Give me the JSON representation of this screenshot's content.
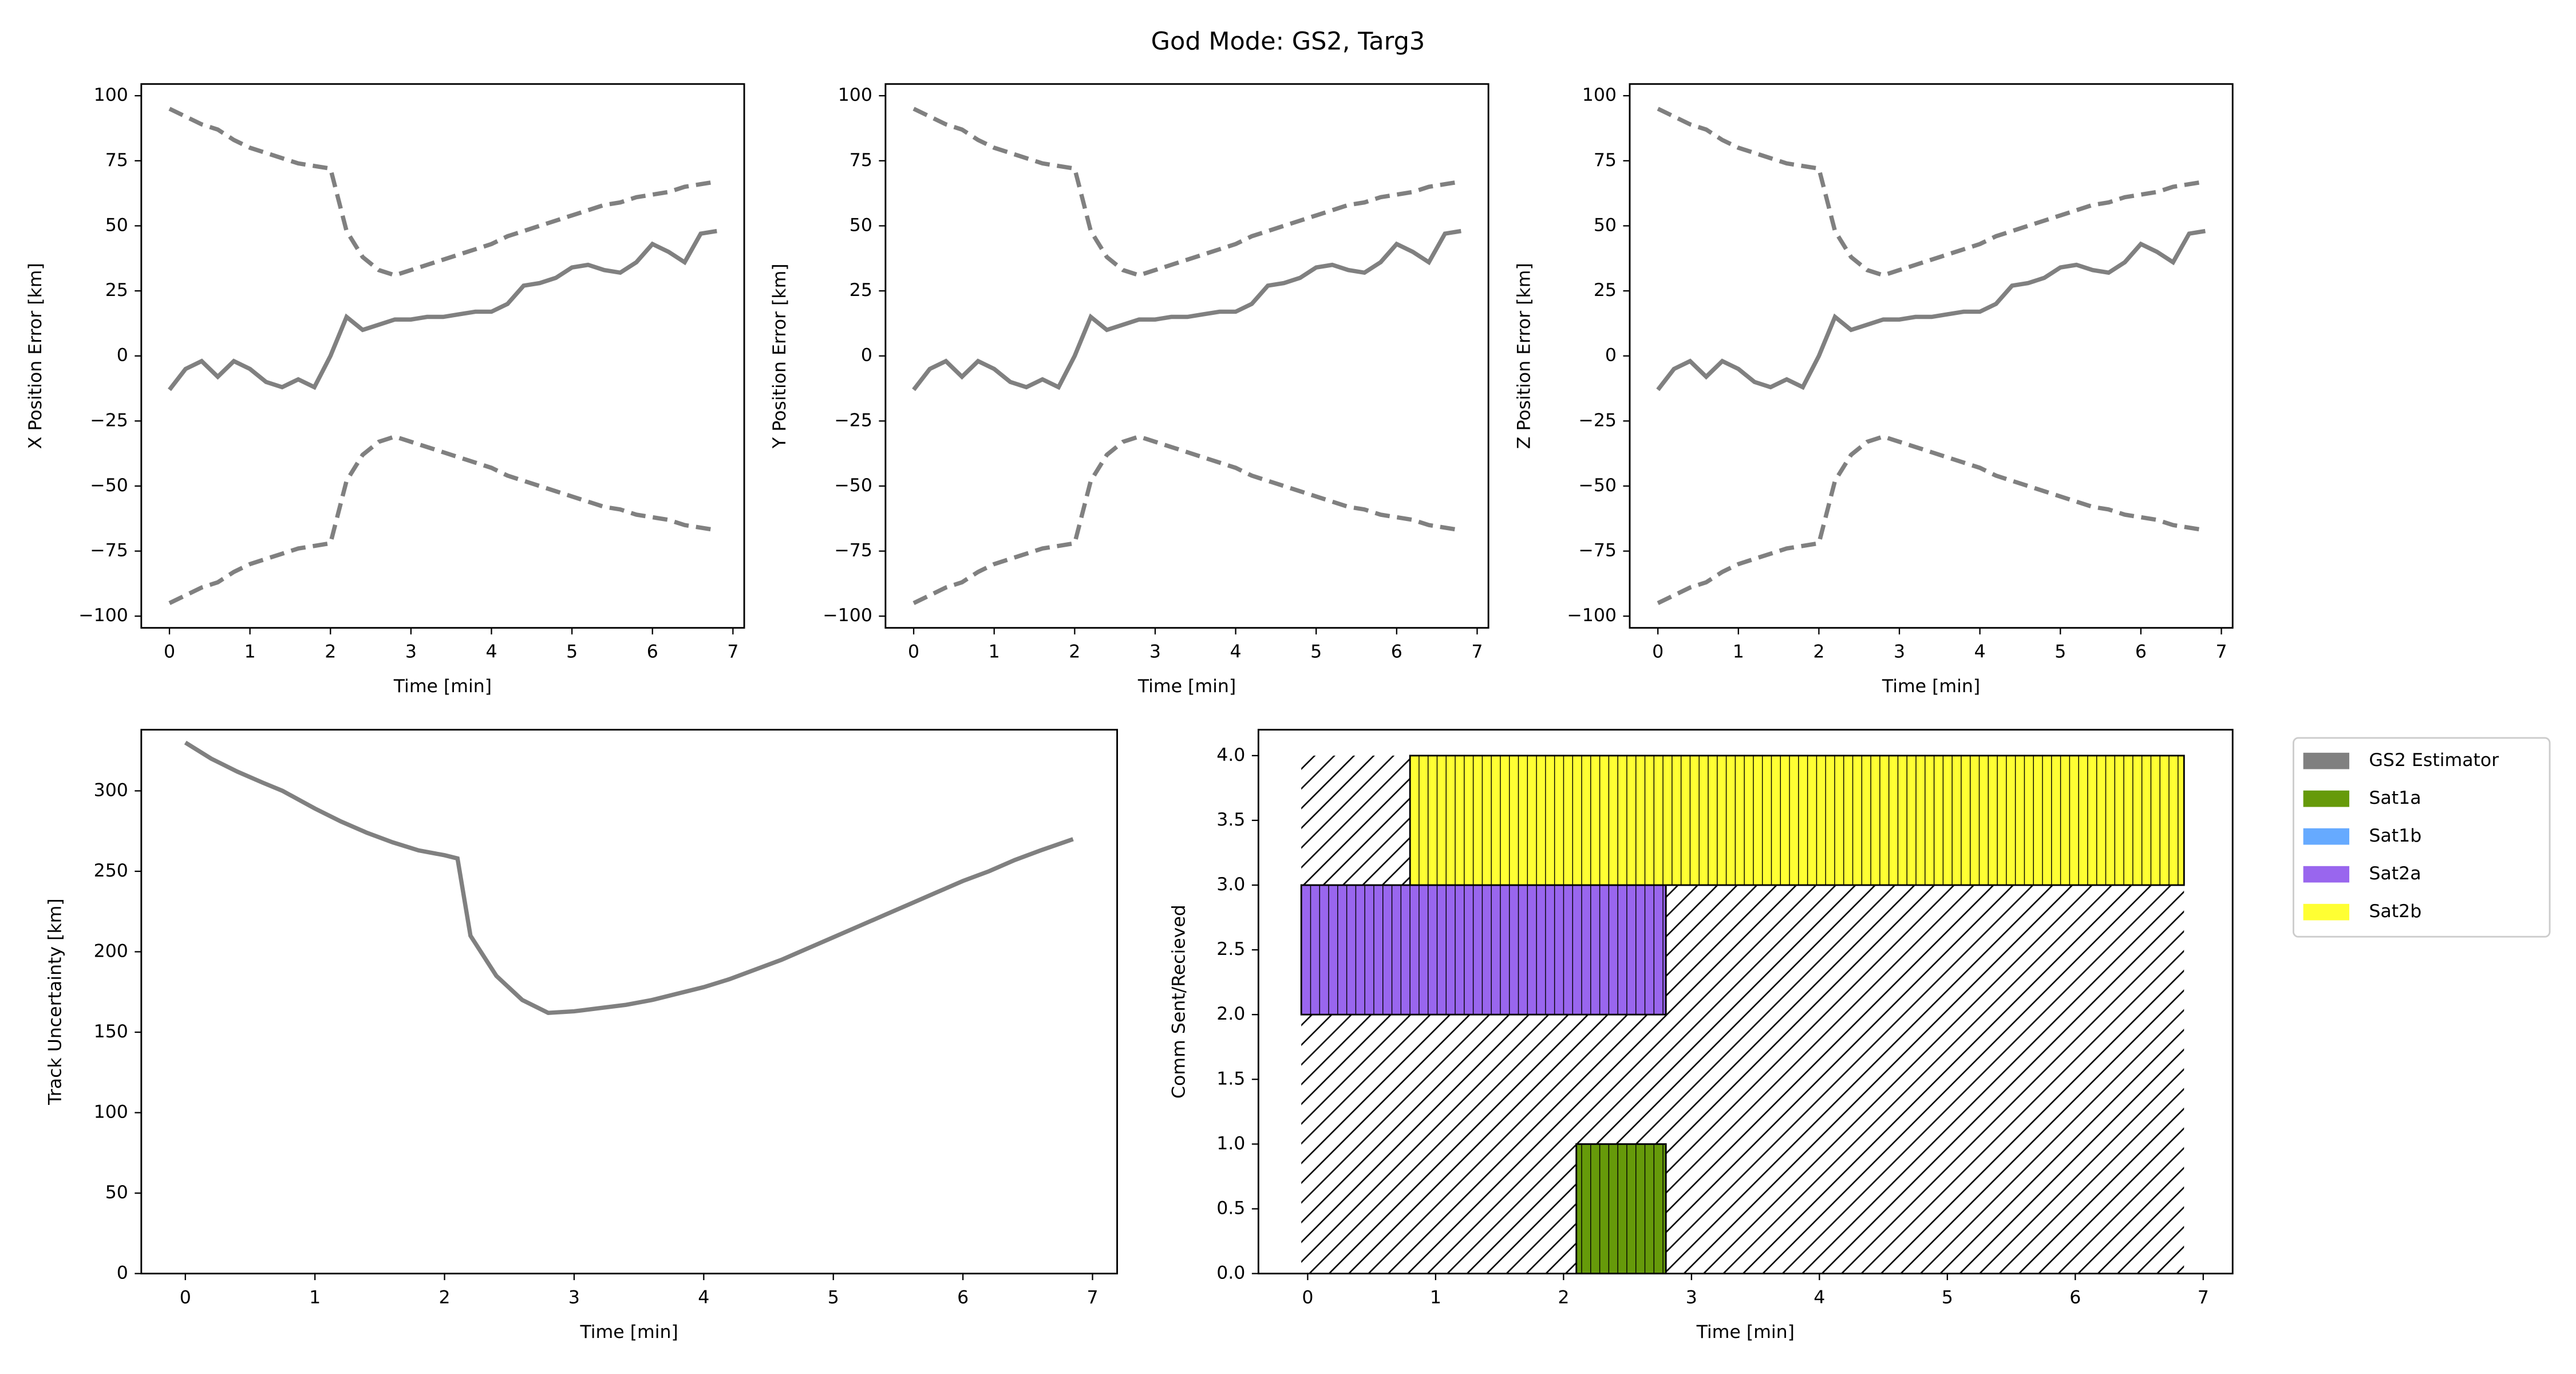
{
  "title": "God Mode: GS2, Targ3",
  "chart_data": [
    {
      "type": "line",
      "xlabel": "Time [min]",
      "ylabel": "X Position Error [km]",
      "x": [
        0,
        0.2,
        0.4,
        0.6,
        0.8,
        1.0,
        1.2,
        1.4,
        1.6,
        1.8,
        2.0,
        2.2,
        2.4,
        2.6,
        2.8,
        3.0,
        3.2,
        3.4,
        3.6,
        3.8,
        4.0,
        4.2,
        4.4,
        4.6,
        4.8,
        5.0,
        5.2,
        5.4,
        5.6,
        5.8,
        6.0,
        6.2,
        6.4,
        6.6,
        6.8
      ],
      "series": [
        {
          "color": "#808080",
          "linestyle": "solid",
          "values": [
            -13,
            -5,
            -2,
            -8,
            -2,
            -5,
            -10,
            -12,
            -9,
            -12,
            0,
            15,
            10,
            12,
            14,
            14,
            15,
            15,
            16,
            17,
            17,
            20,
            27,
            28,
            30,
            34,
            35,
            33,
            32,
            36,
            43,
            40,
            36,
            47,
            48
          ]
        },
        {
          "color": "#808080",
          "linestyle": "dashed",
          "values": [
            95,
            92,
            89,
            87,
            83,
            80,
            78,
            76,
            74,
            73,
            72,
            48,
            38,
            33,
            31,
            33,
            35,
            37,
            39,
            41,
            43,
            46,
            48,
            50,
            52,
            54,
            56,
            58,
            59,
            61,
            62,
            63,
            65,
            66,
            67
          ]
        },
        {
          "color": "#808080",
          "linestyle": "dashed",
          "values": [
            -95,
            -92,
            -89,
            -87,
            -83,
            -80,
            -78,
            -76,
            -74,
            -73,
            -72,
            -48,
            -38,
            -33,
            -31,
            -33,
            -35,
            -37,
            -39,
            -41,
            -43,
            -46,
            -48,
            -50,
            -52,
            -54,
            -56,
            -58,
            -59,
            -61,
            -62,
            -63,
            -65,
            -66,
            -67
          ]
        }
      ],
      "xlim": [
        -0.35,
        7.14
      ],
      "ylim": [
        -104.5,
        104.5
      ],
      "xticks": [
        0,
        1,
        2,
        3,
        4,
        5,
        6,
        7
      ],
      "yticks": [
        {
          "value": -100,
          "label": "−100"
        },
        {
          "value": -75,
          "label": "−75"
        },
        {
          "value": -50,
          "label": "−50"
        },
        {
          "value": -25,
          "label": "−25"
        },
        0,
        25,
        50,
        75,
        100
      ]
    },
    {
      "type": "line",
      "xlabel": "Time [min]",
      "ylabel": "Y Position Error [km]",
      "x": [
        0,
        0.2,
        0.4,
        0.6,
        0.8,
        1.0,
        1.2,
        1.4,
        1.6,
        1.8,
        2.0,
        2.2,
        2.4,
        2.6,
        2.8,
        3.0,
        3.2,
        3.4,
        3.6,
        3.8,
        4.0,
        4.2,
        4.4,
        4.6,
        4.8,
        5.0,
        5.2,
        5.4,
        5.6,
        5.8,
        6.0,
        6.2,
        6.4,
        6.6,
        6.8
      ],
      "series": [
        {
          "color": "#808080",
          "linestyle": "solid",
          "values": [
            -13,
            -5,
            -2,
            -8,
            -2,
            -5,
            -10,
            -12,
            -9,
            -12,
            0,
            15,
            10,
            12,
            14,
            14,
            15,
            15,
            16,
            17,
            17,
            20,
            27,
            28,
            30,
            34,
            35,
            33,
            32,
            36,
            43,
            40,
            36,
            47,
            48
          ]
        },
        {
          "color": "#808080",
          "linestyle": "dashed",
          "values": [
            95,
            92,
            89,
            87,
            83,
            80,
            78,
            76,
            74,
            73,
            72,
            48,
            38,
            33,
            31,
            33,
            35,
            37,
            39,
            41,
            43,
            46,
            48,
            50,
            52,
            54,
            56,
            58,
            59,
            61,
            62,
            63,
            65,
            66,
            67
          ]
        },
        {
          "color": "#808080",
          "linestyle": "dashed",
          "values": [
            -95,
            -92,
            -89,
            -87,
            -83,
            -80,
            -78,
            -76,
            -74,
            -73,
            -72,
            -48,
            -38,
            -33,
            -31,
            -33,
            -35,
            -37,
            -39,
            -41,
            -43,
            -46,
            -48,
            -50,
            -52,
            -54,
            -56,
            -58,
            -59,
            -61,
            -62,
            -63,
            -65,
            -66,
            -67
          ]
        }
      ],
      "xlim": [
        -0.35,
        7.14
      ],
      "ylim": [
        -104.5,
        104.5
      ],
      "xticks": [
        0,
        1,
        2,
        3,
        4,
        5,
        6,
        7
      ],
      "yticks": [
        {
          "value": -100,
          "label": "−100"
        },
        {
          "value": -75,
          "label": "−75"
        },
        {
          "value": -50,
          "label": "−50"
        },
        {
          "value": -25,
          "label": "−25"
        },
        0,
        25,
        50,
        75,
        100
      ]
    },
    {
      "type": "line",
      "xlabel": "Time [min]",
      "ylabel": "Z Position Error [km]",
      "x": [
        0,
        0.2,
        0.4,
        0.6,
        0.8,
        1.0,
        1.2,
        1.4,
        1.6,
        1.8,
        2.0,
        2.2,
        2.4,
        2.6,
        2.8,
        3.0,
        3.2,
        3.4,
        3.6,
        3.8,
        4.0,
        4.2,
        4.4,
        4.6,
        4.8,
        5.0,
        5.2,
        5.4,
        5.6,
        5.8,
        6.0,
        6.2,
        6.4,
        6.6,
        6.8
      ],
      "series": [
        {
          "color": "#808080",
          "linestyle": "solid",
          "values": [
            -13,
            -5,
            -2,
            -8,
            -2,
            -5,
            -10,
            -12,
            -9,
            -12,
            0,
            15,
            10,
            12,
            14,
            14,
            15,
            15,
            16,
            17,
            17,
            20,
            27,
            28,
            30,
            34,
            35,
            33,
            32,
            36,
            43,
            40,
            36,
            47,
            48
          ]
        },
        {
          "color": "#808080",
          "linestyle": "dashed",
          "values": [
            95,
            92,
            89,
            87,
            83,
            80,
            78,
            76,
            74,
            73,
            72,
            48,
            38,
            33,
            31,
            33,
            35,
            37,
            39,
            41,
            43,
            46,
            48,
            50,
            52,
            54,
            56,
            58,
            59,
            61,
            62,
            63,
            65,
            66,
            67
          ]
        },
        {
          "color": "#808080",
          "linestyle": "dashed",
          "values": [
            -95,
            -92,
            -89,
            -87,
            -83,
            -80,
            -78,
            -76,
            -74,
            -73,
            -72,
            -48,
            -38,
            -33,
            -31,
            -33,
            -35,
            -37,
            -39,
            -41,
            -43,
            -46,
            -48,
            -50,
            -52,
            -54,
            -56,
            -58,
            -59,
            -61,
            -62,
            -63,
            -65,
            -66,
            -67
          ]
        }
      ],
      "xlim": [
        -0.35,
        7.14
      ],
      "ylim": [
        -104.5,
        104.5
      ],
      "xticks": [
        0,
        1,
        2,
        3,
        4,
        5,
        6,
        7
      ],
      "yticks": [
        {
          "value": -100,
          "label": "−100"
        },
        {
          "value": -75,
          "label": "−75"
        },
        {
          "value": -50,
          "label": "−50"
        },
        {
          "value": -25,
          "label": "−25"
        },
        0,
        25,
        50,
        75,
        100
      ]
    },
    {
      "type": "line",
      "xlabel": "Time [min]",
      "ylabel": "Track Uncertainty [km]",
      "x": [
        0,
        0.2,
        0.4,
        0.6,
        0.75,
        1.0,
        1.2,
        1.4,
        1.6,
        1.8,
        2.0,
        2.1,
        2.2,
        2.4,
        2.6,
        2.8,
        3.0,
        3.2,
        3.4,
        3.6,
        3.8,
        4.0,
        4.2,
        4.4,
        4.6,
        4.8,
        5.0,
        5.2,
        5.4,
        5.6,
        5.8,
        6.0,
        6.2,
        6.4,
        6.6,
        6.85
      ],
      "series": [
        {
          "color": "#808080",
          "linestyle": "solid",
          "values": [
            330,
            320,
            312,
            305,
            300,
            289,
            281,
            274,
            268,
            263,
            260,
            258,
            210,
            185,
            170,
            162,
            163,
            165,
            167,
            170,
            174,
            178,
            183,
            189,
            195,
            202,
            209,
            216,
            223,
            230,
            237,
            244,
            250,
            257,
            263,
            270
          ]
        }
      ],
      "xlim": [
        -0.34,
        7.19
      ],
      "ylim": [
        0,
        338
      ],
      "xticks": [
        0,
        1,
        2,
        3,
        4,
        5,
        6,
        7
      ],
      "yticks": [
        0,
        50,
        100,
        150,
        200,
        250,
        300
      ]
    },
    {
      "type": "span",
      "xlabel": "Time [min]",
      "ylabel": "Comm Sent/Recieved",
      "legend": "outside-right",
      "series": [
        {
          "name": "GS2 Estimator",
          "color": "#808080",
          "hatch": true,
          "x": [
            -0.05,
            6.85
          ],
          "bottom": 0,
          "height": 4
        },
        {
          "name": "Sat1a",
          "color": "#669a0a",
          "x": [
            2.1,
            2.8
          ],
          "bottom": 0,
          "height": 1
        },
        {
          "name": "Sat1b",
          "color": "#66aaff"
        },
        {
          "name": "Sat2a",
          "color": "#9966ee",
          "x": [
            -0.05,
            2.8
          ],
          "bottom": 2,
          "height": 1
        },
        {
          "name": "Sat2b",
          "color": "#ffff33",
          "x": [
            0.8,
            6.85
          ],
          "bottom": 3,
          "height": 1
        }
      ],
      "xlim": [
        -0.385,
        7.23
      ],
      "ylim": [
        0,
        4.2
      ],
      "xticks": [
        0,
        1,
        2,
        3,
        4,
        5,
        6,
        7
      ],
      "yticks": [
        {
          "value": 0,
          "label": "0.0"
        },
        {
          "value": 0.5,
          "label": "0.5"
        },
        {
          "value": 1,
          "label": "1.0"
        },
        {
          "value": 1.5,
          "label": "1.5"
        },
        {
          "value": 2,
          "label": "2.0"
        },
        {
          "value": 2.5,
          "label": "2.5"
        },
        {
          "value": 3,
          "label": "3.0"
        },
        {
          "value": 3.5,
          "label": "3.5"
        },
        {
          "value": 4,
          "label": "4.0"
        }
      ]
    }
  ]
}
